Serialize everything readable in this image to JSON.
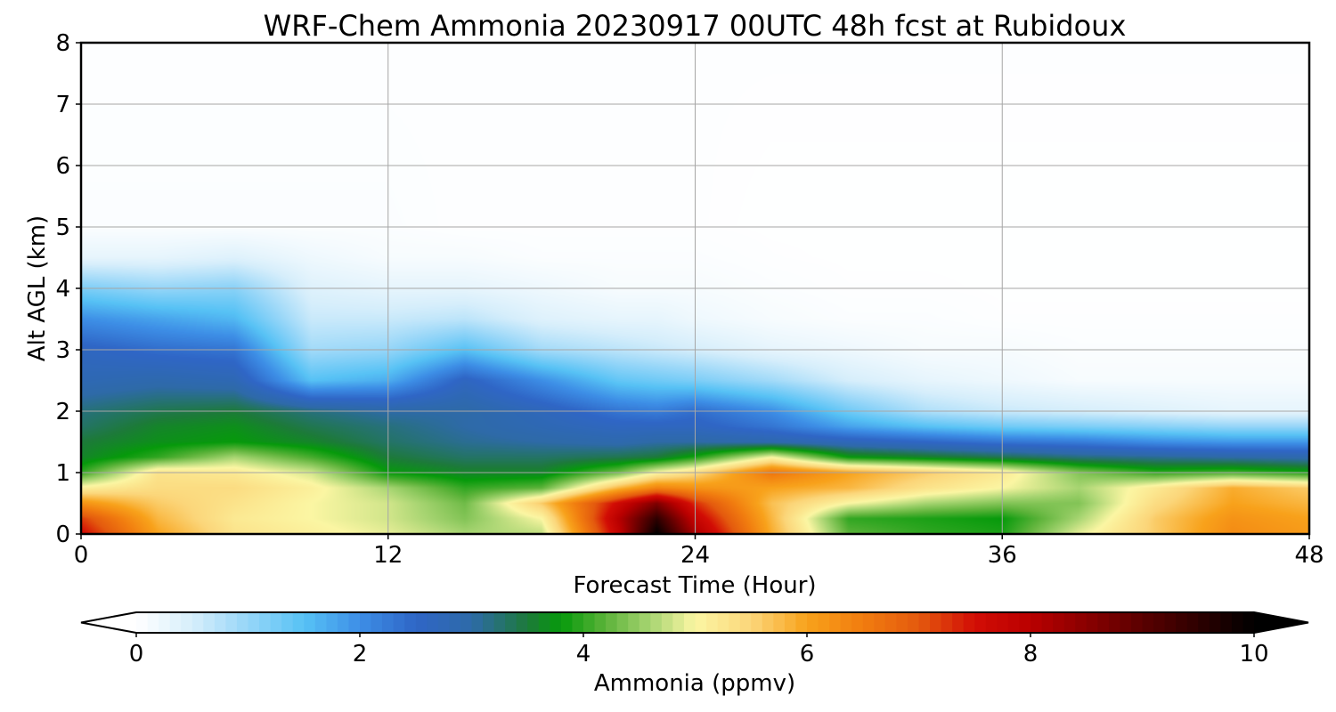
{
  "chart_data": {
    "type": "heatmap",
    "title": "WRF-Chem Ammonia  20230917 00UTC 48h fcst at Rubidoux",
    "xlabel": "Forecast Time (Hour)",
    "ylabel": "Alt AGL (km)",
    "xlim": [
      0,
      48
    ],
    "ylim": [
      0,
      8
    ],
    "xticks": [
      0,
      12,
      24,
      36,
      48
    ],
    "yticks": [
      0,
      1,
      2,
      3,
      4,
      5,
      6,
      7,
      8
    ],
    "grid": true,
    "colorbar": {
      "label": "Ammonia  (ppmv)",
      "range": [
        0,
        10
      ],
      "ticks": [
        0,
        2,
        4,
        6,
        8,
        10
      ],
      "extend": "both",
      "stops": [
        {
          "v": 0.0,
          "c": "#ffffff"
        },
        {
          "v": 0.5,
          "c": "#d6eefb"
        },
        {
          "v": 1.0,
          "c": "#96d6f8"
        },
        {
          "v": 1.5,
          "c": "#57c2f5"
        },
        {
          "v": 2.0,
          "c": "#3d8ee6"
        },
        {
          "v": 2.5,
          "c": "#2f66c6"
        },
        {
          "v": 3.0,
          "c": "#2e6aa8"
        },
        {
          "v": 3.5,
          "c": "#1d7a3a"
        },
        {
          "v": 3.8,
          "c": "#069a0b"
        },
        {
          "v": 4.2,
          "c": "#5db33a"
        },
        {
          "v": 4.6,
          "c": "#a8d572"
        },
        {
          "v": 5.0,
          "c": "#fbf6a3"
        },
        {
          "v": 5.5,
          "c": "#fbd67a"
        },
        {
          "v": 6.0,
          "c": "#f8a21b"
        },
        {
          "v": 6.5,
          "c": "#f17c0f"
        },
        {
          "v": 7.0,
          "c": "#e45a0e"
        },
        {
          "v": 7.5,
          "c": "#d20d05"
        },
        {
          "v": 8.0,
          "c": "#b90000"
        },
        {
          "v": 9.0,
          "c": "#5a0000"
        },
        {
          "v": 10.0,
          "c": "#000000"
        }
      ]
    },
    "field": {
      "x": [
        0,
        3,
        6,
        9,
        12,
        15,
        18,
        21,
        22.5,
        24,
        27,
        30,
        33,
        36,
        39,
        42,
        45,
        48
      ],
      "y": [
        0,
        0.25,
        0.5,
        0.75,
        1.0,
        1.25,
        1.5,
        1.75,
        2.0,
        2.5,
        3.0,
        3.5,
        4.0,
        4.5,
        5.0,
        8.0
      ],
      "z": [
        [
          7.6,
          6.0,
          5.3,
          5.1,
          4.9,
          4.6,
          4.7,
          7.8,
          10.0,
          8.2,
          5.9,
          4.2,
          4.0,
          3.9,
          4.9,
          5.6,
          6.3,
          6.1
        ],
        [
          7.2,
          5.8,
          5.2,
          5.0,
          4.8,
          4.4,
          5.0,
          8.0,
          9.5,
          7.8,
          5.8,
          4.0,
          3.9,
          3.8,
          4.6,
          5.6,
          6.2,
          6.0
        ],
        [
          6.2,
          5.6,
          5.3,
          5.0,
          4.8,
          4.3,
          5.6,
          7.6,
          8.6,
          7.3,
          5.7,
          5.0,
          4.6,
          4.4,
          4.4,
          5.4,
          6.0,
          5.8
        ],
        [
          5.1,
          5.4,
          5.4,
          5.1,
          4.6,
          4.0,
          4.2,
          5.8,
          6.4,
          6.2,
          6.0,
          5.8,
          5.3,
          5.0,
          4.6,
          5.2,
          5.9,
          5.6
        ],
        [
          4.0,
          5.3,
          5.2,
          4.8,
          3.8,
          3.6,
          3.6,
          4.3,
          5.0,
          5.4,
          6.6,
          6.0,
          5.6,
          5.2,
          4.4,
          4.0,
          4.1,
          3.9
        ],
        [
          3.6,
          4.0,
          4.6,
          4.1,
          3.5,
          3.3,
          3.3,
          3.4,
          3.5,
          3.9,
          5.0,
          3.8,
          3.6,
          3.4,
          3.2,
          3.1,
          3.0,
          2.9
        ],
        [
          3.5,
          3.7,
          3.8,
          3.6,
          3.3,
          3.1,
          3.0,
          2.9,
          3.0,
          3.0,
          2.9,
          2.7,
          2.5,
          2.3,
          2.2,
          2.0,
          1.9,
          1.9
        ],
        [
          3.3,
          3.6,
          3.7,
          3.4,
          3.2,
          3.0,
          2.8,
          2.6,
          2.6,
          2.6,
          2.3,
          1.8,
          1.5,
          1.3,
          1.2,
          1.1,
          1.0,
          1.0
        ],
        [
          3.2,
          3.4,
          3.5,
          3.2,
          3.0,
          3.0,
          2.7,
          2.3,
          2.2,
          2.4,
          2.0,
          1.3,
          0.8,
          0.6,
          0.5,
          0.4,
          0.3,
          0.3
        ],
        [
          2.8,
          2.9,
          2.8,
          1.5,
          1.7,
          2.6,
          2.0,
          1.4,
          1.3,
          1.2,
          0.9,
          0.5,
          0.3,
          0.2,
          0.1,
          0.1,
          0.1,
          0.1
        ],
        [
          2.6,
          2.4,
          2.3,
          0.9,
          1.0,
          1.5,
          0.9,
          0.7,
          0.6,
          0.5,
          0.3,
          0.2,
          0.1,
          0.1,
          0.05,
          0.05,
          0.05,
          0.05
        ],
        [
          2.0,
          1.8,
          1.6,
          0.6,
          0.6,
          0.7,
          0.4,
          0.3,
          0.3,
          0.2,
          0.1,
          0.05,
          0.05,
          0.02,
          0.02,
          0.02,
          0.02,
          0.02
        ],
        [
          1.2,
          1.0,
          1.1,
          0.4,
          0.3,
          0.3,
          0.2,
          0.1,
          0.1,
          0.1,
          0.05,
          0.02,
          0.02,
          0.01,
          0.01,
          0.01,
          0.01,
          0.01
        ],
        [
          0.3,
          0.3,
          0.4,
          0.2,
          0.1,
          0.1,
          0.05,
          0.05,
          0.05,
          0.05,
          0.02,
          0.01,
          0.01,
          0.01,
          0.01,
          0.01,
          0.01,
          0.01
        ],
        [
          0.05,
          0.05,
          0.05,
          0.05,
          0.05,
          0.02,
          0.02,
          0.02,
          0.02,
          0.02,
          0.01,
          0.01,
          0.01,
          0.01,
          0.01,
          0.01,
          0.01,
          0.01
        ],
        [
          0.02,
          0.02,
          0.02,
          0.02,
          0.02,
          0.02,
          0.02,
          0.02,
          0.02,
          0.02,
          0.02,
          0.02,
          0.02,
          0.02,
          0.02,
          0.02,
          0.02,
          0.02
        ]
      ]
    }
  }
}
